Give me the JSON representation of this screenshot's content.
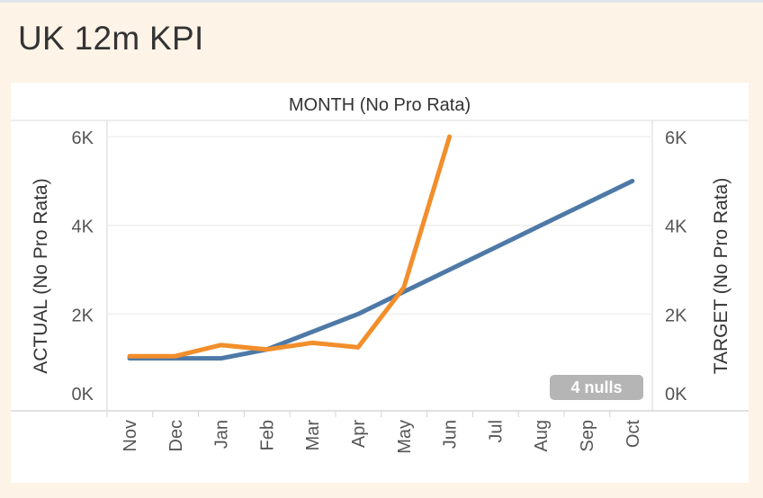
{
  "dashboard": {
    "title": "UK 12m KPI"
  },
  "chart_data": {
    "type": "line",
    "title": "MONTH (No Pro Rata)",
    "xlabel": "",
    "ylabel_left": "ACTUAL (No Pro Rata)",
    "ylabel_right": "TARGET (No Pro Rata)",
    "categories": [
      "Nov",
      "Dec",
      "Jan",
      "Feb",
      "Mar",
      "Apr",
      "May",
      "Jun",
      "Jul",
      "Aug",
      "Sep",
      "Oct"
    ],
    "ylim": [
      0,
      6000
    ],
    "y_ticks": [
      {
        "value": 0,
        "label": "0K"
      },
      {
        "value": 2000,
        "label": "2K"
      },
      {
        "value": 4000,
        "label": "4K"
      },
      {
        "value": 6000,
        "label": "6K"
      }
    ],
    "series": [
      {
        "name": "ACTUAL (No Pro Rata)",
        "axis": "left",
        "color": "#f28e2b",
        "values": [
          1050,
          1050,
          1300,
          1200,
          1350,
          1250,
          2600,
          6000,
          null,
          null,
          null,
          null
        ]
      },
      {
        "name": "TARGET (No Pro Rata)",
        "axis": "right",
        "color": "#4e79a7",
        "values": [
          1000,
          1000,
          1000,
          1200,
          1600,
          2000,
          2500,
          3000,
          3500,
          4000,
          4500,
          5000
        ]
      }
    ],
    "nulls_badge": "4 nulls",
    "grid": true,
    "legend": "none"
  }
}
